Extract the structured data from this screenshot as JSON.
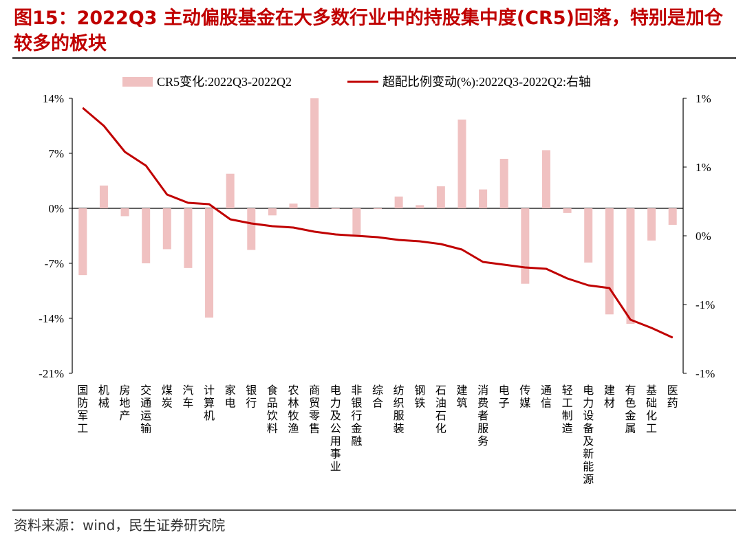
{
  "title": {
    "prefix": "图15：",
    "text": "2022Q3 主动偏股基金在大多数行业中的持股集中度(CR5)回落，特别是加仓较多的板块"
  },
  "source": "资料来源：wind，民生证券研究院",
  "colors": {
    "bar": "#f0c1c1",
    "line": "#c00000",
    "title": "#c00000"
  },
  "chart_data": {
    "type": "bar+line",
    "categories": [
      "国防军工",
      "机械",
      "房地产",
      "交通运输",
      "煤炭",
      "汽车",
      "计算机",
      "家电",
      "银行",
      "食品饮料",
      "农林牧渔",
      "商贸零售",
      "电力及公用事业",
      "非银行金融",
      "综合",
      "纺织服装",
      "钢铁",
      "石油石化",
      "建筑",
      "消费者服务",
      "电子",
      "传媒",
      "通信",
      "轻工制造",
      "电力设备及新能源",
      "建材",
      "有色金属",
      "基础化工",
      "医药"
    ],
    "series": [
      {
        "name": "CR5变化:2022Q3-2022Q2",
        "axis": "left",
        "kind": "bar",
        "values": [
          -8.5,
          2.9,
          -1.0,
          -7.0,
          -5.2,
          -7.6,
          -13.9,
          4.4,
          -5.3,
          -0.9,
          0.6,
          14.0,
          0.0,
          -3.4,
          -0.1,
          1.5,
          0.4,
          2.8,
          11.3,
          2.4,
          6.3,
          -9.6,
          7.4,
          -0.6,
          -6.9,
          -13.5,
          -14.7,
          -4.1,
          -2.1
        ]
      },
      {
        "name": "超配比例变动(%):2022Q3-2022Q2:右轴",
        "axis": "right",
        "kind": "line",
        "values": [
          0.93,
          0.8,
          0.61,
          0.51,
          0.3,
          0.24,
          0.23,
          0.12,
          0.09,
          0.07,
          0.06,
          0.03,
          0.01,
          0.0,
          -0.01,
          -0.03,
          -0.04,
          -0.06,
          -0.1,
          -0.19,
          -0.21,
          -0.23,
          -0.24,
          -0.31,
          -0.36,
          -0.38,
          -0.61,
          -0.67,
          -0.74
        ]
      }
    ],
    "left_axis": {
      "ylim": [
        -21,
        14
      ],
      "ticks": [
        14,
        7,
        0,
        -7,
        -14,
        -21
      ],
      "tick_labels": [
        "14%",
        "7%",
        "0%",
        "-7%",
        "-14%",
        "-21%"
      ]
    },
    "right_axis": {
      "ylim": [
        -1.0,
        1.0
      ],
      "ticks": [
        1.0,
        0.5,
        0.0,
        -0.5,
        -1.0
      ],
      "tick_labels": [
        "1%",
        "1%",
        "0%",
        "-1%",
        "-1%"
      ]
    },
    "legend_position": "top"
  }
}
